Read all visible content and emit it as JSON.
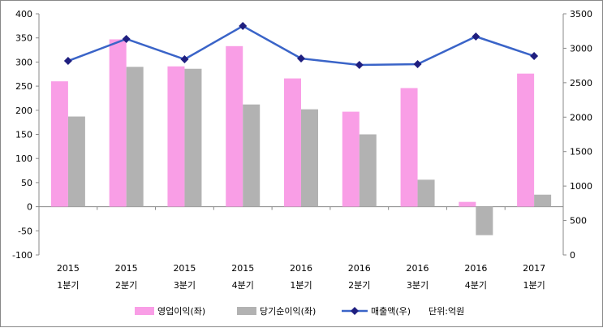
{
  "chart_data": {
    "type": "bar",
    "categories": [
      [
        "2015",
        "1분기"
      ],
      [
        "2015",
        "2분기"
      ],
      [
        "2015",
        "3분기"
      ],
      [
        "2015",
        "4분기"
      ],
      [
        "2016",
        "1분기"
      ],
      [
        "2016",
        "2분기"
      ],
      [
        "2016",
        "3분기"
      ],
      [
        "2016",
        "4분기"
      ],
      [
        "2017",
        "1분기"
      ]
    ],
    "series": [
      {
        "name": "영업이익(좌)",
        "type": "bar",
        "axis": "left",
        "color": "#f99ee6",
        "values": [
          260,
          347,
          291,
          333,
          266,
          197,
          246,
          10,
          276
        ]
      },
      {
        "name": "당기순이익(좌)",
        "type": "bar",
        "axis": "left",
        "color": "#b2b2b2",
        "values": [
          187,
          290,
          286,
          212,
          202,
          150,
          56,
          -59,
          25
        ]
      },
      {
        "name": "매출액(우)",
        "type": "line",
        "axis": "right",
        "color": "#3a64c8",
        "marker_color": "#1f1f80",
        "values": [
          2816,
          3135,
          2840,
          3323,
          2852,
          2757,
          2769,
          3170,
          2887
        ]
      }
    ],
    "unit_note": "단위:억원",
    "ylim_left": [
      -100,
      400
    ],
    "yticks_left": [
      -100,
      -50,
      0,
      50,
      100,
      150,
      200,
      250,
      300,
      350,
      400
    ],
    "ylim_right": [
      0,
      3500
    ],
    "yticks_right": [
      0,
      500,
      1000,
      1500,
      2000,
      2500,
      3000,
      3500
    ],
    "legend": "bottom",
    "grid": false
  }
}
